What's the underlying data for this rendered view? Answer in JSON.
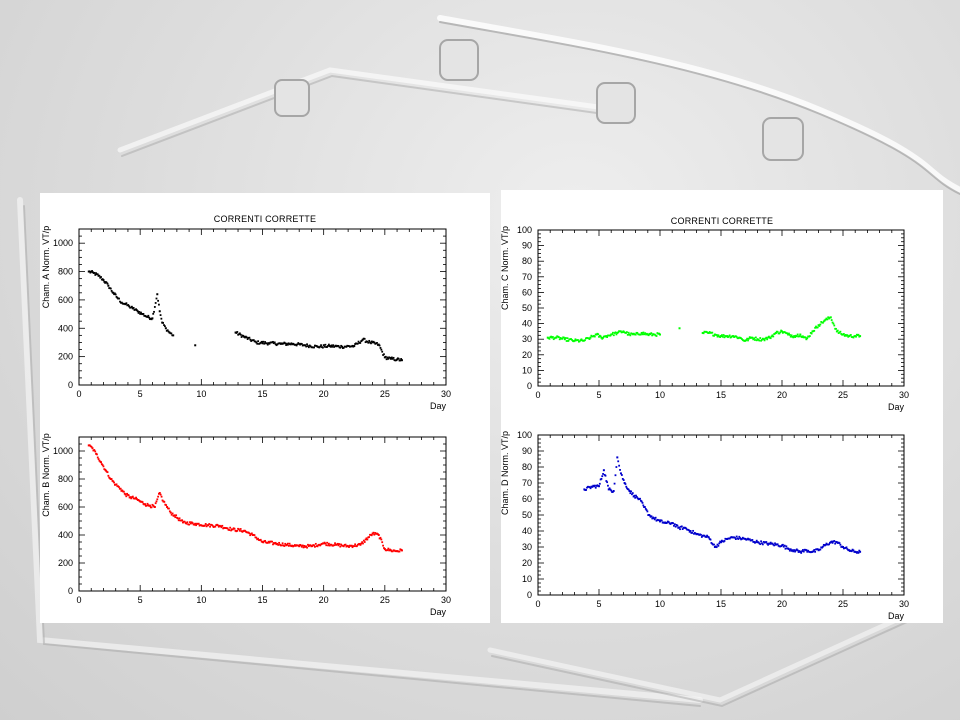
{
  "panels": [
    {
      "title": "CORRENTI CORRETTE"
    },
    {
      "title": "CORRENTI CORRETTE"
    }
  ],
  "chart_data": [
    {
      "type": "scatter",
      "ylabel": "Cham. A Norm. VT/p",
      "xlabel": "Day",
      "xlim": [
        0,
        30
      ],
      "ylim": [
        0,
        1100
      ],
      "xticks": [
        0,
        5,
        10,
        15,
        20,
        25,
        30
      ],
      "yticks": [
        0,
        200,
        400,
        600,
        800,
        1000
      ],
      "grid": false,
      "color": "#000000",
      "series": [
        {
          "x": [
            0.8,
            1.2,
            1.6,
            2.0,
            2.4,
            2.8,
            3.2,
            3.5,
            3.8,
            4.1,
            4.4,
            4.8,
            5.2,
            5.6,
            6.0,
            6.4,
            6.6,
            6.8,
            7.1,
            7.4,
            7.7,
            9.5,
            12.8,
            13.5,
            14.5,
            15.5,
            16.5,
            17.5,
            18.5,
            19.5,
            20.5,
            21.5,
            22.5,
            23.2,
            23.8,
            24.5,
            25.0,
            25.5,
            26.0,
            26.4
          ],
          "y": [
            800,
            790,
            770,
            740,
            700,
            650,
            610,
            580,
            570,
            555,
            540,
            520,
            500,
            480,
            470,
            640,
            520,
            440,
            400,
            370,
            350,
            280,
            370,
            340,
            300,
            295,
            290,
            290,
            280,
            270,
            275,
            270,
            275,
            320,
            300,
            285,
            195,
            185,
            180,
            175
          ]
        }
      ]
    },
    {
      "type": "scatter",
      "ylabel": "Cham. B Norm. VT/p",
      "xlabel": "Day",
      "xlim": [
        0,
        30
      ],
      "ylim": [
        0,
        1100
      ],
      "xticks": [
        0,
        5,
        10,
        15,
        20,
        25,
        30
      ],
      "yticks": [
        0,
        200,
        400,
        600,
        800,
        1000
      ],
      "grid": false,
      "color": "#ff0000",
      "series": [
        {
          "x": [
            0.8,
            1.1,
            1.4,
            1.8,
            2.2,
            2.6,
            3.0,
            3.4,
            3.8,
            4.2,
            4.6,
            5.0,
            5.4,
            5.8,
            6.2,
            6.6,
            6.9,
            7.2,
            7.5,
            7.8,
            8.5,
            9.5,
            10.5,
            11.5,
            12.5,
            13.5,
            14.2,
            15.0,
            16.0,
            17.0,
            18.0,
            19.0,
            20.0,
            21.0,
            22.0,
            23.0,
            24.0,
            24.5,
            25.0,
            25.5,
            26.0,
            26.4
          ],
          "y": [
            1040,
            1020,
            980,
            920,
            860,
            800,
            760,
            730,
            690,
            670,
            660,
            640,
            620,
            610,
            600,
            700,
            640,
            600,
            560,
            540,
            490,
            480,
            470,
            465,
            440,
            430,
            400,
            350,
            340,
            330,
            320,
            320,
            340,
            330,
            320,
            330,
            410,
            400,
            300,
            290,
            285,
            290
          ]
        }
      ]
    },
    {
      "type": "scatter",
      "ylabel": "Cham. C Norm. VT/p",
      "xlabel": "Day",
      "xlim": [
        0,
        30
      ],
      "ylim": [
        0,
        100
      ],
      "xticks": [
        0,
        5,
        10,
        15,
        20,
        25,
        30
      ],
      "yticks": [
        0,
        10,
        20,
        30,
        40,
        50,
        60,
        70,
        80,
        90,
        100
      ],
      "grid": false,
      "color": "#00ff00",
      "series": [
        {
          "x": [
            0.8,
            1.5,
            2.2,
            3.0,
            3.7,
            4.3,
            4.8,
            5.2,
            5.6,
            6.0,
            6.5,
            7.0,
            7.5,
            8.0,
            8.5,
            9.0,
            9.5,
            10.0,
            11.6,
            13.5,
            14.0,
            14.5,
            15.0,
            15.5,
            16.0,
            16.5,
            17.0,
            17.5,
            18.0,
            18.5,
            19.0,
            19.5,
            20.0,
            20.5,
            21.0,
            21.5,
            22.0,
            22.5,
            23.0,
            23.5,
            24.0,
            24.5,
            25.0,
            25.5,
            26.0,
            26.4
          ],
          "y": [
            31,
            31,
            30,
            29,
            29,
            31,
            33,
            31,
            32,
            33,
            34,
            35,
            33,
            33,
            34,
            33,
            33,
            33,
            37,
            34,
            34,
            33,
            32,
            32,
            32,
            31,
            29,
            31,
            30,
            30,
            31,
            34,
            35,
            33,
            32,
            33,
            30,
            35,
            39,
            42,
            44,
            35,
            33,
            32,
            32,
            32
          ]
        }
      ]
    },
    {
      "type": "scatter",
      "ylabel": "Cham. D Norm. VT/p",
      "xlabel": "Day",
      "xlim": [
        0,
        30
      ],
      "ylim": [
        0,
        100
      ],
      "xticks": [
        0,
        5,
        10,
        15,
        20,
        25,
        30
      ],
      "yticks": [
        0,
        10,
        20,
        30,
        40,
        50,
        60,
        70,
        80,
        90,
        100
      ],
      "grid": false,
      "color": "#0000cc",
      "series": [
        {
          "x": [
            3.8,
            4.6,
            5.0,
            5.4,
            5.8,
            6.2,
            6.5,
            6.8,
            7.1,
            7.5,
            7.9,
            8.3,
            8.7,
            9.1,
            9.5,
            10.0,
            10.5,
            11.0,
            11.5,
            12.0,
            12.5,
            13.0,
            13.5,
            14.0,
            14.5,
            15.0,
            15.5,
            16.0,
            17.0,
            18.0,
            19.0,
            20.0,
            20.5,
            21.0,
            21.5,
            22.0,
            22.5,
            23.0,
            23.5,
            24.0,
            24.5,
            25.0,
            25.5,
            26.0,
            26.4
          ],
          "y": [
            66,
            68,
            68,
            78,
            66,
            65,
            86,
            76,
            70,
            65,
            62,
            60,
            55,
            50,
            48,
            46,
            45,
            45,
            42,
            42,
            40,
            38,
            37,
            36,
            30,
            33,
            35,
            36,
            35,
            33,
            32,
            31,
            29,
            28,
            27,
            28,
            27,
            28,
            31,
            33,
            33,
            30,
            28,
            27,
            27
          ]
        }
      ]
    }
  ]
}
